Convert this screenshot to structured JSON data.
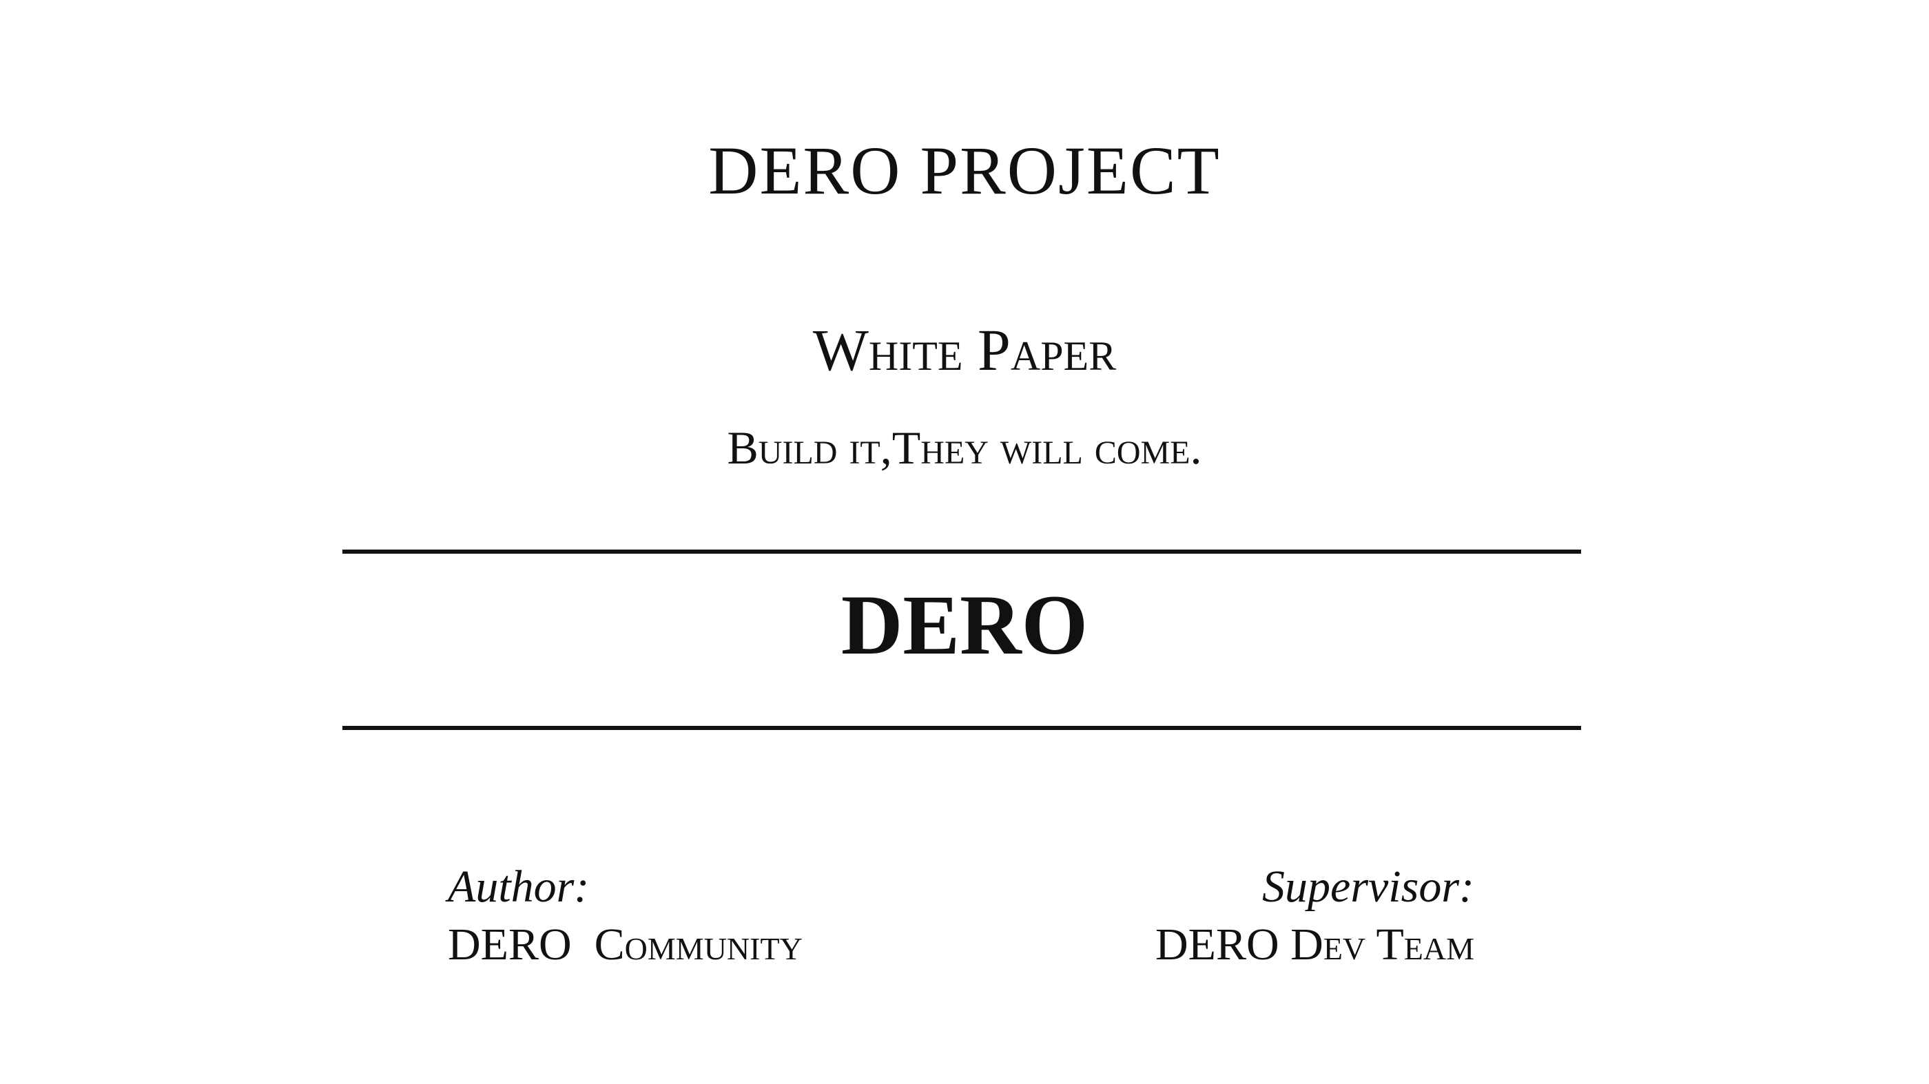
{
  "header": {
    "project_title": "DERO PROJECT"
  },
  "subtitle": {
    "document_type": "White Paper",
    "tagline": "Build it,They will come."
  },
  "main": {
    "title": "DERO"
  },
  "credits": {
    "author_label": "Author:",
    "author_value": "DERO  Community",
    "supervisor_label": "Supervisor:",
    "supervisor_value": "DERO Dev Team"
  }
}
